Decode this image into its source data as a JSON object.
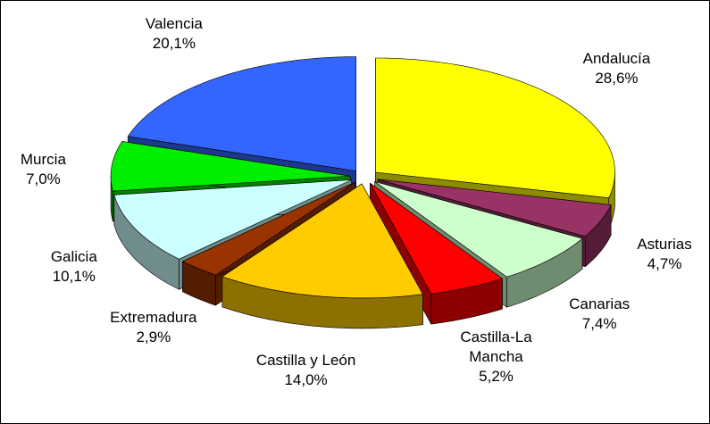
{
  "chart_data": {
    "type": "pie3d",
    "categories": [
      "Andalucía",
      "Asturias",
      "Canarias",
      "Castilla-La Mancha",
      "Castilla y León",
      "Extremadura",
      "Galicia",
      "Murcia",
      "Valencia"
    ],
    "values": [
      28.6,
      4.7,
      7.4,
      5.2,
      14.0,
      2.9,
      10.1,
      7.0,
      20.1
    ],
    "value_labels": [
      "28,6%",
      "4,7%",
      "7,4%",
      "5,2%",
      "14,0%",
      "2,9%",
      "10,1%",
      "7,0%",
      "20,1%"
    ],
    "colors": [
      "#ffff00",
      "#993366",
      "#ccffcc",
      "#ff0000",
      "#ffcc00",
      "#993300",
      "#ccffff",
      "#00ee00",
      "#3366ff"
    ]
  }
}
